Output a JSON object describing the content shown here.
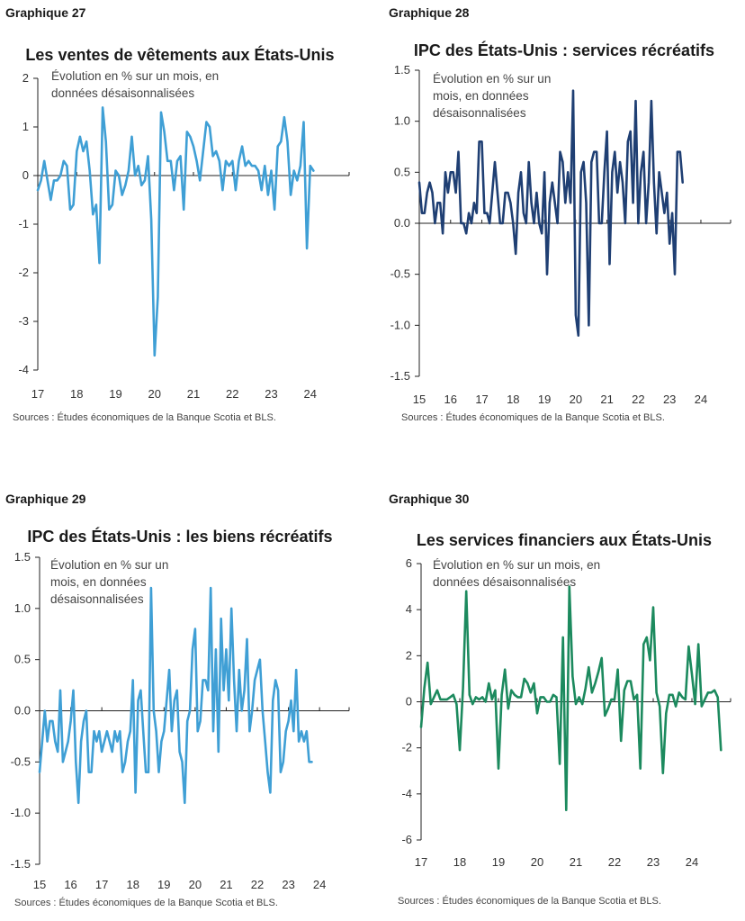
{
  "source_text": "Sources : Études économiques de la Banque Scotia et BLS.",
  "chart_data": [
    {
      "id": "p27",
      "label": "Graphique 27",
      "type": "line",
      "title": "Les ventes de vêtements aux États-Unis",
      "note_lines": [
        "Évolution en % sur un mois, en",
        "données désaisonnalisées"
      ],
      "color": "#3f9fd5",
      "xlabel": "",
      "ylabel": "",
      "xlim": [
        2017.0,
        2025.0
      ],
      "ylim": [
        -4,
        2
      ],
      "yticks": [
        2,
        1,
        0,
        -1,
        -2,
        -3,
        -4
      ],
      "ytick_labels": [
        "2",
        "1",
        "0",
        "-1",
        "-2",
        "-3",
        "-4"
      ],
      "xticks": [
        2017,
        2018,
        2019,
        2020,
        2021,
        2022,
        2023,
        2024
      ],
      "xtick_labels": [
        "17",
        "18",
        "19",
        "20",
        "21",
        "22",
        "23",
        "24"
      ],
      "x_start": 2017.0,
      "y_axis_side": "left",
      "values": [
        -0.3,
        -0.1,
        0.3,
        -0.1,
        -0.5,
        -0.1,
        -0.1,
        0.0,
        0.3,
        0.2,
        -0.7,
        -0.6,
        0.5,
        0.8,
        0.5,
        0.7,
        0.1,
        -0.8,
        -0.6,
        -1.8,
        1.4,
        0.7,
        -0.7,
        -0.6,
        0.1,
        0.0,
        -0.4,
        -0.2,
        0.1,
        0.8,
        0.0,
        0.2,
        -0.2,
        -0.1,
        0.4,
        -0.9,
        -3.7,
        -2.5,
        1.3,
        0.9,
        0.3,
        0.3,
        -0.3,
        0.3,
        0.4,
        -0.7,
        0.9,
        0.8,
        0.6,
        0.3,
        -0.1,
        0.5,
        1.1,
        1.0,
        0.4,
        0.5,
        0.3,
        -0.3,
        0.3,
        0.2,
        0.3,
        -0.3,
        0.3,
        0.6,
        0.2,
        0.3,
        0.2,
        0.2,
        0.1,
        -0.3,
        0.2,
        -0.4,
        0.1,
        -0.7,
        0.6,
        0.7,
        1.2,
        0.7,
        -0.4,
        0.1,
        -0.1,
        0.2,
        1.1,
        -1.5,
        0.2,
        0.1
      ]
    },
    {
      "id": "p28",
      "label": "Graphique 28",
      "type": "line",
      "title": "IPC des États-Unis : services récréatifs",
      "note_lines": [
        "Évolution en % sur un",
        "mois, en données",
        "désaisonnalisées"
      ],
      "color": "#1f3f73",
      "xlabel": "",
      "ylabel": "",
      "xlim": [
        2015.0,
        2024.95
      ],
      "ylim": [
        -1.5,
        1.5
      ],
      "yticks": [
        1.5,
        1.0,
        0.5,
        0.0,
        -0.5,
        -1.0,
        -1.5
      ],
      "ytick_labels": [
        "1.5",
        "1.0",
        "0.5",
        "0.0",
        "-0.5",
        "-1.0",
        "-1.5"
      ],
      "xticks": [
        2015,
        2016,
        2017,
        2018,
        2019,
        2020,
        2021,
        2022,
        2023,
        2024
      ],
      "xtick_labels": [
        "15",
        "16",
        "17",
        "18",
        "19",
        "20",
        "21",
        "22",
        "23",
        "24"
      ],
      "x_start": 2015.0,
      "y_axis_side": "left",
      "values": [
        0.4,
        0.1,
        0.1,
        0.3,
        0.4,
        0.3,
        0.0,
        0.2,
        0.2,
        -0.1,
        0.5,
        0.3,
        0.5,
        0.5,
        0.3,
        0.7,
        0.0,
        0.0,
        -0.1,
        0.1,
        0.0,
        0.2,
        0.1,
        0.8,
        0.8,
        0.1,
        0.1,
        0.0,
        0.3,
        0.6,
        0.3,
        0.0,
        0.0,
        0.3,
        0.3,
        0.2,
        0.0,
        -0.3,
        0.3,
        0.5,
        0.1,
        0.0,
        0.6,
        0.2,
        0.0,
        0.3,
        0.0,
        -0.1,
        0.5,
        -0.5,
        0.2,
        0.4,
        0.2,
        0.0,
        0.7,
        0.6,
        0.2,
        0.5,
        0.2,
        1.3,
        -0.9,
        -1.1,
        0.5,
        0.6,
        0.2,
        -1.0,
        0.6,
        0.7,
        0.7,
        0.0,
        0.0,
        0.5,
        0.9,
        -0.4,
        0.5,
        0.7,
        0.3,
        0.6,
        0.4,
        0.0,
        0.8,
        0.9,
        0.2,
        1.2,
        0.0,
        0.5,
        0.7,
        0.0,
        0.4,
        1.2,
        0.4,
        -0.1,
        0.5,
        0.3,
        0.1,
        0.3,
        -0.2,
        0.1,
        -0.5,
        0.7,
        0.7,
        0.4
      ]
    },
    {
      "id": "p29",
      "label": "Graphique 29",
      "type": "line",
      "title": "IPC des États-Unis : les biens récréatifs",
      "note_lines": [
        "Évolution en % sur un",
        "mois, en données",
        "désaisonnalisées"
      ],
      "color": "#3f9fd5",
      "xlabel": "",
      "ylabel": "",
      "xlim": [
        2015.0,
        2024.95
      ],
      "ylim": [
        -1.5,
        1.5
      ],
      "yticks": [
        1.5,
        1.0,
        0.5,
        0.0,
        -0.5,
        -1.0,
        -1.5
      ],
      "ytick_labels": [
        "1.5",
        "1.0",
        "0.5",
        "0.0",
        "-0.5",
        "-1.0",
        "-1.5"
      ],
      "xticks": [
        2015,
        2016,
        2017,
        2018,
        2019,
        2020,
        2021,
        2022,
        2023,
        2024
      ],
      "xtick_labels": [
        "15",
        "16",
        "17",
        "18",
        "19",
        "20",
        "21",
        "22",
        "23",
        "24"
      ],
      "x_start": 2015.0,
      "y_axis_side": "left",
      "values": [
        -0.6,
        -0.3,
        0.0,
        -0.3,
        -0.1,
        -0.1,
        -0.3,
        -0.4,
        0.2,
        -0.5,
        -0.4,
        -0.3,
        -0.1,
        0.2,
        -0.5,
        -0.9,
        -0.3,
        -0.1,
        0.0,
        -0.6,
        -0.6,
        -0.2,
        -0.3,
        -0.2,
        -0.4,
        -0.3,
        -0.2,
        -0.3,
        -0.4,
        -0.2,
        -0.3,
        -0.2,
        -0.6,
        -0.5,
        -0.3,
        -0.2,
        0.3,
        -0.8,
        0.1,
        0.2,
        -0.2,
        -0.6,
        -0.6,
        1.2,
        0.0,
        -0.2,
        -0.6,
        -0.3,
        -0.2,
        0.1,
        0.4,
        -0.2,
        0.1,
        0.2,
        -0.4,
        -0.5,
        -0.9,
        -0.1,
        0.0,
        0.6,
        0.8,
        -0.2,
        -0.1,
        0.3,
        0.3,
        0.2,
        1.2,
        -0.2,
        0.6,
        -0.4,
        0.9,
        0.2,
        0.6,
        0.1,
        1.0,
        0.3,
        -0.2,
        0.4,
        0.0,
        0.2,
        0.7,
        -0.2,
        0.0,
        0.3,
        0.4,
        0.5,
        0.0,
        -0.3,
        -0.6,
        -0.8,
        0.1,
        0.3,
        0.2,
        -0.6,
        -0.5,
        -0.2,
        -0.1,
        0.1,
        -0.2,
        0.4,
        -0.3,
        -0.2,
        -0.3,
        -0.2,
        -0.5,
        -0.5
      ]
    },
    {
      "id": "p30",
      "label": "Graphique 30",
      "type": "line",
      "title": "Les services financiers aux États-Unis",
      "note_lines": [
        "Évolution en % sur un mois, en",
        "données désaisonnalisées"
      ],
      "color": "#1c8a5e",
      "xlabel": "",
      "ylabel": "",
      "xlim": [
        2017.0,
        2025.0
      ],
      "ylim": [
        -6,
        6
      ],
      "yticks": [
        6,
        4,
        2,
        0,
        -2,
        -4,
        -6
      ],
      "ytick_labels": [
        "6",
        "4",
        "2",
        "0",
        "-2",
        "-4",
        "-6"
      ],
      "xticks": [
        2017,
        2018,
        2019,
        2020,
        2021,
        2022,
        2023,
        2024
      ],
      "xtick_labels": [
        "17",
        "18",
        "19",
        "20",
        "21",
        "22",
        "23",
        "24"
      ],
      "x_start": 2017.0,
      "y_axis_side": "left",
      "values": [
        -1.1,
        0.6,
        1.7,
        -0.1,
        0.2,
        0.5,
        0.1,
        0.1,
        0.1,
        0.2,
        0.3,
        -0.1,
        -2.1,
        0.6,
        4.8,
        0.3,
        -0.1,
        0.2,
        0.1,
        0.2,
        0.0,
        0.8,
        0.1,
        0.5,
        -2.9,
        0.3,
        1.4,
        -0.3,
        0.5,
        0.3,
        0.2,
        0.2,
        1.0,
        0.8,
        0.4,
        0.8,
        -0.5,
        0.2,
        0.2,
        0.0,
        0.0,
        0.3,
        0.2,
        -2.7,
        2.8,
        -4.7,
        5.0,
        1.1,
        -0.1,
        0.2,
        -0.1,
        0.6,
        1.5,
        0.4,
        0.8,
        1.3,
        1.9,
        -0.6,
        -0.3,
        0.1,
        0.1,
        1.4,
        -1.7,
        0.5,
        0.9,
        0.9,
        0.1,
        0.3,
        -2.9,
        2.5,
        2.8,
        1.8,
        4.1,
        0.4,
        -0.2,
        -3.1,
        -0.5,
        0.3,
        0.3,
        -0.2,
        0.4,
        0.2,
        0.1,
        2.4,
        1.2,
        -0.1,
        2.5,
        -0.2,
        0.1,
        0.4,
        0.4,
        0.5,
        0.2,
        -2.1
      ]
    }
  ]
}
